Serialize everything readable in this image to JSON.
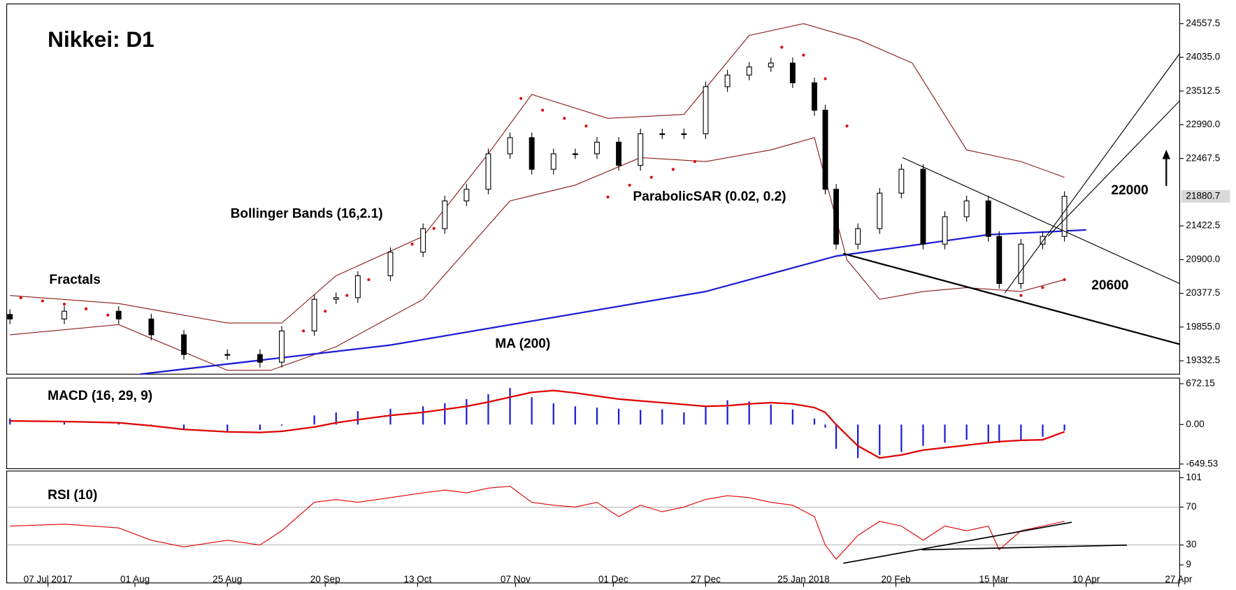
{
  "chart_data": [
    {
      "type": "candlestick",
      "title": "Nikkei: D1",
      "x": [
        0,
        10,
        20,
        26,
        32,
        40,
        46,
        50,
        56,
        60,
        64,
        70,
        76,
        80,
        84,
        88,
        92,
        96,
        100,
        104,
        108,
        112,
        116,
        120,
        124,
        128,
        132,
        136,
        140,
        144,
        148,
        150,
        152,
        156,
        160,
        164,
        168,
        172,
        176,
        180,
        182,
        186,
        190,
        194
      ],
      "open": [
        20050,
        19980,
        20100,
        19980,
        19735,
        19430,
        19430,
        19310,
        19795,
        20285,
        20310,
        20650,
        21015,
        21380,
        21810,
        21990,
        22540,
        22790,
        22300,
        22540,
        22540,
        22720,
        22360,
        22850,
        22850,
        22850,
        23580,
        23760,
        23885,
        23946,
        23640,
        23215,
        21990,
        21140,
        21380,
        21930,
        22300,
        21140,
        21565,
        21810,
        21260,
        20530,
        21140,
        21260
      ],
      "high": [
        20130,
        20180,
        20180,
        20060,
        19810,
        19510,
        19510,
        19870,
        20360,
        20390,
        20720,
        21090,
        21460,
        21890,
        22070,
        22620,
        22870,
        22870,
        22620,
        22620,
        22800,
        22800,
        22930,
        22930,
        22930,
        23660,
        23840,
        23960,
        24030,
        24030,
        23720,
        23300,
        22070,
        21460,
        22010,
        22380,
        22380,
        21650,
        21890,
        21890,
        21340,
        21220,
        21340,
        21960
      ],
      "low": [
        19900,
        19900,
        19900,
        19650,
        19350,
        19350,
        19230,
        19230,
        19720,
        20210,
        20230,
        20570,
        20940,
        21300,
        21730,
        21910,
        22460,
        22220,
        22220,
        22460,
        22460,
        22280,
        22280,
        22770,
        22770,
        22770,
        23500,
        23680,
        23810,
        23560,
        23130,
        21910,
        21060,
        21060,
        21300,
        21850,
        21060,
        21060,
        21490,
        21180,
        20450,
        20450,
        21060,
        21180
      ],
      "close": [
        19980,
        20100,
        19980,
        19735,
        19430,
        19430,
        19310,
        19795,
        20285,
        20310,
        20650,
        21015,
        21380,
        21810,
        21990,
        22540,
        22790,
        22300,
        22540,
        22540,
        22720,
        22360,
        22850,
        22850,
        22850,
        23580,
        23760,
        23885,
        23946,
        23640,
        23215,
        21990,
        21140,
        21380,
        21930,
        22300,
        21140,
        21565,
        21810,
        21260,
        20530,
        21140,
        21260,
        21880.7
      ],
      "up_color": "#ffffff",
      "down_color": "#000000",
      "bands": {
        "name": "Bollinger Bands (16,2.1)",
        "color": "#8b1a1a",
        "x": [
          0,
          20,
          40,
          50,
          60,
          76,
          88,
          96,
          110,
          124,
          136,
          146,
          156,
          166,
          176,
          186,
          194
        ],
        "upper": [
          20345,
          20220,
          19917,
          19917,
          20650,
          21260,
          22540,
          23460,
          23090,
          23150,
          24374,
          24557,
          24313,
          23946,
          22600,
          22420,
          22175
        ],
        "x_lower": [
          0,
          20,
          40,
          48,
          60,
          76,
          92,
          104,
          116,
          128,
          140,
          148,
          154,
          160,
          168,
          176,
          186,
          194
        ],
        "lower": [
          19735,
          19893,
          19185,
          19185,
          19550,
          20285,
          21810,
          22055,
          22480,
          22420,
          22600,
          22790,
          20895,
          20285,
          20405,
          20466,
          20405,
          20590
        ]
      },
      "ma": {
        "name": "MA (200)",
        "color": "#1c1cd6",
        "x": [
          24,
          70,
          128,
          152,
          180,
          198
        ],
        "values": [
          19125,
          19575,
          20405,
          20955,
          21285,
          21360
        ]
      },
      "sar": {
        "name": "ParabolicSAR (0.02, 0.2)",
        "color": "#e00000",
        "x": [
          2,
          6,
          10,
          14,
          18,
          50,
          54,
          58,
          62,
          66,
          70,
          74,
          78,
          94,
          98,
          102,
          106,
          110,
          114,
          118,
          122,
          126,
          142,
          146,
          150,
          154,
          186,
          190,
          194
        ],
        "values": [
          20308,
          20260,
          20210,
          20137,
          20040,
          19551,
          19795,
          20100,
          20345,
          20590,
          20834,
          21139,
          21383,
          23397,
          23215,
          23090,
          22970,
          21870,
          22054,
          22176,
          22298,
          22420,
          24191,
          24069,
          23703,
          22970,
          20345,
          20467,
          20590
        ]
      },
      "annotations": [
        "Fractals",
        "22000",
        "20600"
      ],
      "xlim": [
        -0.6,
        215.2
      ],
      "ylim": [
        19125,
        24862
      ],
      "yticks": [
        24557.5,
        {
          "value": 24035,
          "label": "24035.0"
        },
        23512.5,
        {
          "value": 22990,
          "label": "22990.0"
        },
        22467.5,
        21422.5,
        {
          "value": 20900,
          "label": "20900.0"
        },
        20377.5,
        {
          "value": 19855,
          "label": "19855.0"
        },
        19332.5
      ]
    },
    {
      "type": "macd",
      "title": "MACD (16, 29, 9)",
      "histogram": {
        "color": "#1c1cd6",
        "values": [
          100,
          60,
          20,
          -20,
          -80,
          -120,
          -90,
          -20,
          150,
          200,
          220,
          260,
          300,
          350,
          420,
          500,
          600,
          450,
          350,
          300,
          280,
          260,
          240,
          250,
          200,
          300,
          400,
          380,
          330,
          250,
          100,
          -50,
          -400,
          -550,
          -500,
          -450,
          -350,
          -300,
          -250,
          -300,
          -300,
          -250,
          -200,
          -100
        ]
      },
      "signal": {
        "color": "#e00000",
        "values": [
          60,
          50,
          30,
          -20,
          -80,
          -120,
          -130,
          -110,
          -40,
          30,
          80,
          150,
          200,
          250,
          300,
          370,
          450,
          530,
          560,
          520,
          470,
          420,
          390,
          360,
          330,
          300,
          310,
          340,
          360,
          340,
          280,
          200,
          0,
          -350,
          -550,
          -500,
          -420,
          -380,
          -340,
          -300,
          -280,
          -260,
          -250,
          -120
        ]
      },
      "ylim": [
        -726,
        764
      ],
      "yticks": [
        672.15,
        {
          "value": 0,
          "label": "0.00"
        },
        -649.53
      ]
    },
    {
      "type": "line",
      "title": "RSI (10)",
      "color": "#e00000",
      "values": [
        50,
        52,
        48,
        35,
        28,
        35,
        30,
        45,
        75,
        78,
        75,
        80,
        85,
        88,
        85,
        90,
        92,
        75,
        72,
        70,
        75,
        60,
        72,
        65,
        70,
        78,
        82,
        80,
        75,
        72,
        60,
        30,
        15,
        40,
        55,
        50,
        35,
        50,
        45,
        50,
        25,
        45,
        50,
        55
      ],
      "ylim": [
        -10,
        108
      ],
      "yticks": [
        101,
        70,
        30,
        9
      ],
      "xticks": [
        {
          "value": 7,
          "label": "07 Jul 2017"
        },
        {
          "value": 23,
          "label": "01 Aug"
        },
        {
          "value": 40,
          "label": "25 Aug"
        },
        {
          "value": 58,
          "label": "20 Sep"
        },
        {
          "value": 75,
          "label": "13 Oct"
        },
        {
          "value": 93,
          "label": "07 Nov"
        },
        {
          "value": 111,
          "label": "01 Dec"
        },
        {
          "value": 128,
          "label": "27 Dec"
        },
        {
          "value": 146,
          "label": "25 Jan 2018"
        },
        {
          "value": 163,
          "label": "20 Feb"
        },
        {
          "value": 181,
          "label": "15 Mar"
        },
        {
          "value": 198,
          "label": "10 Apr"
        },
        {
          "value": 215,
          "label": "27 Apr"
        }
      ]
    }
  ]
}
